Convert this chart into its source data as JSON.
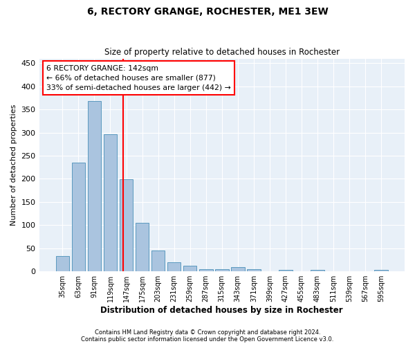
{
  "title": "6, RECTORY GRANGE, ROCHESTER, ME1 3EW",
  "subtitle": "Size of property relative to detached houses in Rochester",
  "xlabel_bottom": "Distribution of detached houses by size in Rochester",
  "ylabel": "Number of detached properties",
  "bar_color": "#aac4df",
  "bar_edge_color": "#5a9abf",
  "categories": [
    "35sqm",
    "63sqm",
    "91sqm",
    "119sqm",
    "147sqm",
    "175sqm",
    "203sqm",
    "231sqm",
    "259sqm",
    "287sqm",
    "315sqm",
    "343sqm",
    "371sqm",
    "399sqm",
    "427sqm",
    "455sqm",
    "483sqm",
    "511sqm",
    "539sqm",
    "567sqm",
    "595sqm"
  ],
  "values": [
    33,
    235,
    368,
    297,
    199,
    105,
    45,
    20,
    13,
    5,
    5,
    10,
    5,
    0,
    4,
    0,
    4,
    0,
    0,
    0,
    4
  ],
  "property_label": "6 RECTORY GRANGE: 142sqm",
  "pct_smaller": 66,
  "n_smaller": 877,
  "pct_larger_semi": 33,
  "n_larger_semi": 442,
  "ylim": [
    0,
    460
  ],
  "yticks": [
    0,
    50,
    100,
    150,
    200,
    250,
    300,
    350,
    400,
    450
  ],
  "footnote1": "Contains HM Land Registry data © Crown copyright and database right 2024.",
  "footnote2": "Contains public sector information licensed under the Open Government Licence v3.0.",
  "plot_bg_color": "#e8f0f8"
}
